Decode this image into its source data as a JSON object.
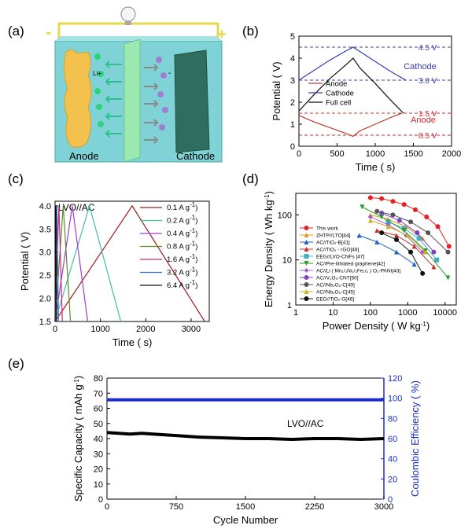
{
  "panels": {
    "a": {
      "label": "(a)",
      "anode_label": "Anode",
      "cathode_label": "Cathode",
      "minus_sign": "-",
      "plus_sign": "+",
      "ion_label": "Li+",
      "anion_label": "-",
      "colors": {
        "anode": "#f2c14e",
        "cathode": "#2f6e5f",
        "box": "#7fd3d6",
        "separator": "#9be8b0",
        "wire": "#e5d84a",
        "ion": "#2fd07f",
        "anion": "#9c7fcf"
      }
    },
    "b": {
      "label": "(b)"
    },
    "c": {
      "label": "(c)"
    },
    "d": {
      "label": "(d)"
    },
    "e": {
      "label": "(e)"
    }
  },
  "chart_data": [
    {
      "id": "b",
      "type": "line",
      "xlabel": "Time  ( s)",
      "ylabel": "Potential  ( V)",
      "xlim": [
        0,
        2000
      ],
      "ylim": [
        0,
        5
      ],
      "xticks": [
        0,
        500,
        1000,
        1500,
        2000
      ],
      "yticks": [
        0,
        1,
        2,
        3,
        4,
        5
      ],
      "legend_position": "center",
      "series": [
        {
          "name": "Anode",
          "color": "#c0392b",
          "x": [
            0,
            200,
            400,
            600,
            710,
            800,
            1000,
            1200,
            1350
          ],
          "y": [
            1.4,
            1.1,
            0.85,
            0.6,
            0.45,
            0.7,
            1.0,
            1.3,
            1.5
          ]
        },
        {
          "name": "Cathode",
          "color": "#3b3bb5",
          "x": [
            0,
            200,
            400,
            600,
            710,
            800,
            1000,
            1200,
            1400
          ],
          "y": [
            3.0,
            3.45,
            3.9,
            4.3,
            4.5,
            4.3,
            3.85,
            3.4,
            3.0
          ]
        },
        {
          "name": "Full cell",
          "color": "#111111",
          "x": [
            0,
            200,
            400,
            600,
            710,
            800,
            1000,
            1200,
            1370
          ],
          "y": [
            1.6,
            2.35,
            3.05,
            3.65,
            4.0,
            3.55,
            2.85,
            2.1,
            1.5
          ]
        }
      ],
      "reference_lines": [
        {
          "label": "4.5 V",
          "y": 4.5,
          "color": "#3b3bb5"
        },
        {
          "label": "3.0 V",
          "y": 3.0,
          "color": "#3b3bb5"
        },
        {
          "label": "1.5 V",
          "y": 1.5,
          "color": "#d62728"
        },
        {
          "label": "0.5 V",
          "y": 0.5,
          "color": "#d62728"
        }
      ],
      "annotations": [
        {
          "text": "Cathode",
          "color": "#3b3bb5"
        },
        {
          "text": "Anode",
          "color": "#d62728"
        }
      ]
    },
    {
      "id": "c",
      "type": "line",
      "title": "LVO//AC",
      "xlabel": "Time  ( s)",
      "ylabel": "Potential  ( V)",
      "xlim": [
        0,
        3400
      ],
      "ylim": [
        1.5,
        4.1
      ],
      "xticks": [
        0,
        1000,
        2000,
        3000
      ],
      "yticks": [
        1.5,
        2.0,
        2.5,
        3.0,
        3.5,
        4.0
      ],
      "legend_position": "right",
      "series": [
        {
          "name": "0.1 A g",
          "color": "#9b1c1c",
          "t_peak": 1700,
          "t_end": 3300
        },
        {
          "name": "0.2 A g",
          "color": "#3fbfa0",
          "t_peak": 760,
          "t_end": 1450
        },
        {
          "name": "0.4 A g",
          "color": "#a43cd1",
          "t_peak": 380,
          "t_end": 720
        },
        {
          "name": "0.8 A g",
          "color": "#5a8a2a",
          "t_peak": 180,
          "t_end": 340
        },
        {
          "name": "1.6 A g",
          "color": "#cc2a7a",
          "t_peak": 85,
          "t_end": 160
        },
        {
          "name": "3.2 A g",
          "color": "#2f6fd0",
          "t_peak": 40,
          "t_end": 75
        },
        {
          "name": "6.4 A g",
          "color": "#111111",
          "t_peak": 18,
          "t_end": 34
        }
      ],
      "potential_range": [
        1.5,
        4.0
      ],
      "unit_superscript": "-1"
    },
    {
      "id": "d",
      "type": "scatter",
      "xlabel": "Power Density  ( W kg",
      "ylabel": "Energy Density  ( Wh kg",
      "unit_superscript": "-1",
      "xscale": "log",
      "yscale": "log",
      "xlim": [
        1,
        20000
      ],
      "ylim": [
        1,
        300
      ],
      "xticks": [
        "1",
        "10",
        "100",
        "1000",
        "10000"
      ],
      "yticks": [
        "1",
        "10",
        "100"
      ],
      "legend_position": "left",
      "series": [
        {
          "name": "This work",
          "color": "#e62020",
          "marker": "circle",
          "x": [
            100,
            200,
            400,
            800,
            1600,
            3200,
            6400,
            12800
          ],
          "y": [
            240,
            230,
            200,
            170,
            130,
            90,
            55,
            20
          ]
        },
        {
          "name": "ZHTP//LTO[44]",
          "color": "#e09a20",
          "marker": "triangle",
          "x": [
            100,
            300,
            900,
            2500
          ],
          "y": [
            100,
            80,
            55,
            30
          ]
        },
        {
          "name": "AC//TiO₂-B[41]",
          "color": "#2060c0",
          "marker": "triangle",
          "x": [
            50,
            150,
            500,
            1500
          ],
          "y": [
            35,
            25,
            15,
            8
          ]
        },
        {
          "name": "AC//TiO₂ - rGO[48]",
          "color": "#c03020",
          "marker": "triangle",
          "x": [
            150,
            500,
            1500,
            5000
          ],
          "y": [
            45,
            35,
            20,
            7
          ]
        },
        {
          "name": "EEG//LVO-CNFs [47]",
          "color": "#40b0c0",
          "marker": "square",
          "x": [
            300,
            800,
            2000,
            6000
          ],
          "y": [
            70,
            50,
            30,
            10
          ]
        },
        {
          "name": "AC//Pre-lithiated graphene[42]",
          "color": "#2a9a2a",
          "marker": "triangle-down",
          "x": [
            60,
            200,
            800,
            3000,
            12000
          ],
          "y": [
            150,
            90,
            45,
            16,
            4
          ]
        },
        {
          "name": "AC//Li ( Mn₁/₃Ni₁/₃Fe₁/₃ ) O₂-PANI[43]",
          "color": "#a060d0",
          "marker": "diamond",
          "x": [
            100,
            300,
            900,
            2500
          ],
          "y": [
            90,
            60,
            35,
            15
          ]
        },
        {
          "name": "AC//V₂O₅-CNT[50]",
          "color": "#8040c0",
          "marker": "circle",
          "x": [
            200,
            600,
            1800,
            5000
          ],
          "y": [
            110,
            75,
            40,
            15
          ]
        },
        {
          "name": "AC//Nb₂O₅-C[49]",
          "color": "#555555",
          "marker": "circle",
          "x": [
            150,
            400,
            1200,
            3500,
            12000
          ],
          "y": [
            120,
            100,
            70,
            40,
            15
          ]
        },
        {
          "name": "AC//Nb₂O₅-C[45]",
          "color": "#c8b020",
          "marker": "triangle",
          "x": [
            100,
            300,
            1000,
            3000
          ],
          "y": [
            75,
            55,
            35,
            15
          ]
        },
        {
          "name": "EEG//TiO₂-G[46]",
          "color": "#111111",
          "marker": "circle",
          "x": [
            200,
            500,
            1200,
            2500
          ],
          "y": [
            40,
            28,
            15,
            5
          ]
        }
      ]
    },
    {
      "id": "e",
      "type": "scatter",
      "title": "LVO//AC",
      "xlabel": "Cycle Number",
      "ylabel": "Specific Capacity  ( mAh g",
      "unit_superscript": "-1",
      "y2label": "Coulombic Efficiency  ( %)",
      "xlim": [
        0,
        3000
      ],
      "ylim": [
        0,
        80
      ],
      "y2lim": [
        0,
        120
      ],
      "xticks": [
        0,
        750,
        1500,
        2250,
        3000
      ],
      "yticks": [
        0,
        10,
        20,
        30,
        40,
        50,
        60,
        70,
        80
      ],
      "y2ticks": [
        0,
        20,
        40,
        60,
        80,
        100,
        120
      ],
      "series": [
        {
          "name": "Specific capacity",
          "axis": "left",
          "color": "#000000",
          "x": [
            0,
            250,
            375,
            500,
            750,
            1000,
            1250,
            1500,
            1750,
            2000,
            2250,
            2500,
            2750,
            3000
          ],
          "y": [
            44,
            43,
            43.5,
            43,
            42,
            41,
            40.5,
            40,
            40,
            39.5,
            40,
            40,
            39.5,
            40
          ]
        },
        {
          "name": "Coulombic efficiency",
          "axis": "right",
          "color": "#1a2bd6",
          "x": [
            0,
            3000
          ],
          "y": [
            98.5,
            98.5
          ]
        }
      ]
    }
  ]
}
